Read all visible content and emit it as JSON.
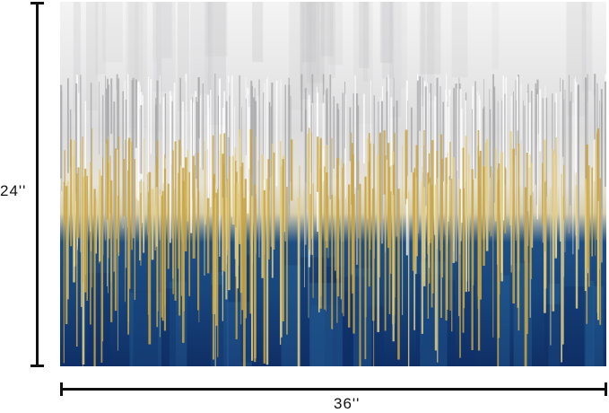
{
  "product_image": {
    "artwork": "abstract-painting",
    "colors": {
      "white": "#f2f2f2",
      "gray": "#a9a9ab",
      "gold": "#c9a646",
      "navy": "#16457d",
      "dark_navy": "#0f2f66"
    }
  },
  "dimensions": {
    "height_label": "24''",
    "width_label": "36''"
  }
}
